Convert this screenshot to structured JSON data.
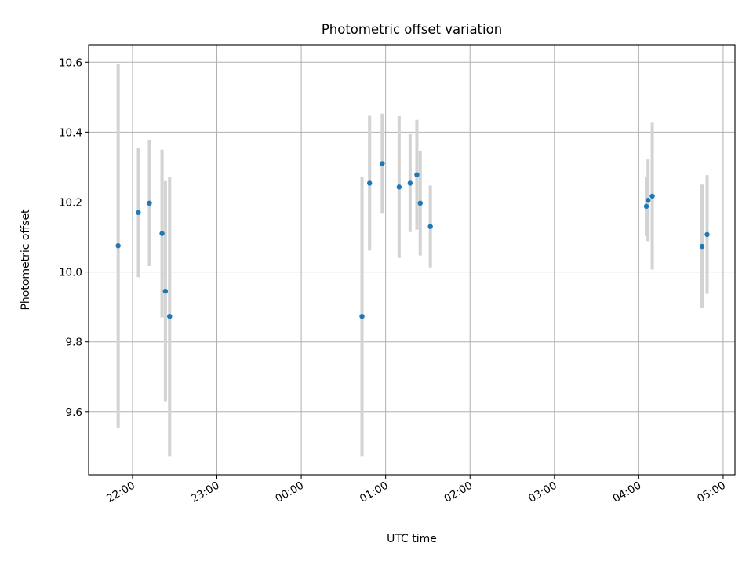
{
  "chart_data": {
    "type": "scatter",
    "title": "Photometric offset variation",
    "xlabel": "UTC time",
    "ylabel": "Photometric offset",
    "x_tick_labels": [
      "22:00",
      "23:00",
      "00:00",
      "01:00",
      "02:00",
      "03:00",
      "04:00",
      "05:00"
    ],
    "x_tick_values": [
      22,
      23,
      24,
      25,
      26,
      27,
      28,
      29
    ],
    "xlim": [
      21.48,
      29.14
    ],
    "ylim": [
      9.42,
      10.65
    ],
    "y_ticks": [
      9.6,
      9.8,
      10.0,
      10.2,
      10.4,
      10.6
    ],
    "grid": true,
    "colors": {
      "point": "#1f77b4",
      "errorbar": "#d3d3d3"
    },
    "points": [
      {
        "t": 21.83,
        "y": 10.075,
        "yerr": 0.52
      },
      {
        "t": 22.07,
        "y": 10.17,
        "yerr": 0.185
      },
      {
        "t": 22.2,
        "y": 10.197,
        "yerr": 0.18
      },
      {
        "t": 22.35,
        "y": 10.11,
        "yerr": 0.24
      },
      {
        "t": 22.39,
        "y": 9.945,
        "yerr": 0.315
      },
      {
        "t": 22.44,
        "y": 9.873,
        "yerr": 0.4
      },
      {
        "t": 24.72,
        "y": 9.873,
        "yerr": 0.4
      },
      {
        "t": 24.81,
        "y": 10.254,
        "yerr": 0.193
      },
      {
        "t": 24.96,
        "y": 10.31,
        "yerr": 0.143
      },
      {
        "t": 25.16,
        "y": 10.243,
        "yerr": 0.203
      },
      {
        "t": 25.29,
        "y": 10.254,
        "yerr": 0.14
      },
      {
        "t": 25.37,
        "y": 10.278,
        "yerr": 0.157
      },
      {
        "t": 25.41,
        "y": 10.197,
        "yerr": 0.15
      },
      {
        "t": 25.53,
        "y": 10.13,
        "yerr": 0.117
      },
      {
        "t": 28.09,
        "y": 10.188,
        "yerr": 0.085
      },
      {
        "t": 28.11,
        "y": 10.205,
        "yerr": 0.117
      },
      {
        "t": 28.16,
        "y": 10.217,
        "yerr": 0.21
      },
      {
        "t": 28.75,
        "y": 10.073,
        "yerr": 0.177
      },
      {
        "t": 28.81,
        "y": 10.107,
        "yerr": 0.17
      }
    ]
  }
}
